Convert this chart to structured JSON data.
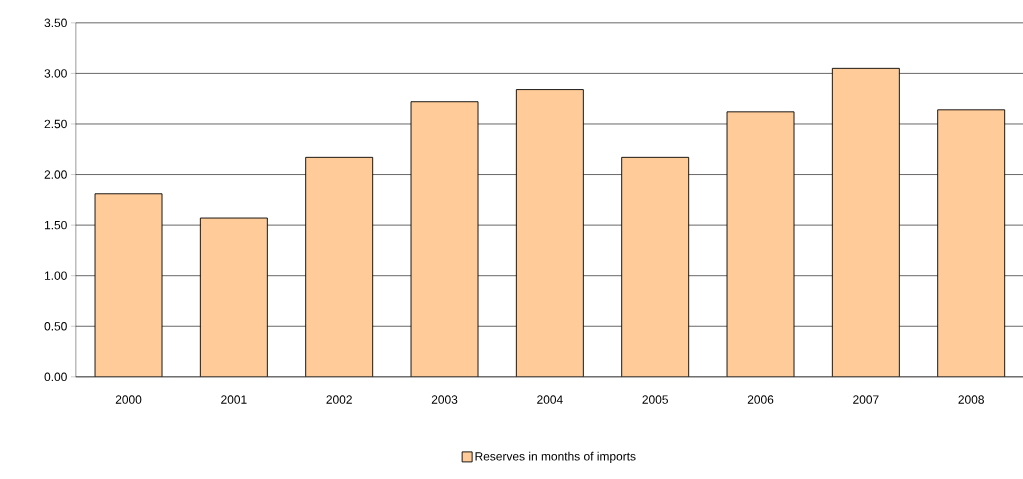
{
  "chart_data": {
    "type": "bar",
    "categories": [
      "2000",
      "2001",
      "2002",
      "2003",
      "2004",
      "2005",
      "2006",
      "2007",
      "2008"
    ],
    "series": [
      {
        "name": "Reserves in months of imports",
        "color": "#ffcc99",
        "values": [
          1.81,
          1.57,
          2.17,
          2.72,
          2.84,
          2.17,
          2.62,
          3.05,
          2.64
        ]
      }
    ],
    "ylim": [
      0,
      3.5
    ],
    "yticks": [
      {
        "value": 0,
        "label": "0.00"
      },
      {
        "value": 0.5,
        "label": "0.50"
      },
      {
        "value": 1,
        "label": "1.00"
      },
      {
        "value": 1.5,
        "label": "1.50"
      },
      {
        "value": 2,
        "label": "2.00"
      },
      {
        "value": 2.5,
        "label": "2.50"
      },
      {
        "value": 3,
        "label": "3.00"
      },
      {
        "value": 3.5,
        "label": "3.50"
      }
    ],
    "grid": "y",
    "legend": "bottom"
  }
}
